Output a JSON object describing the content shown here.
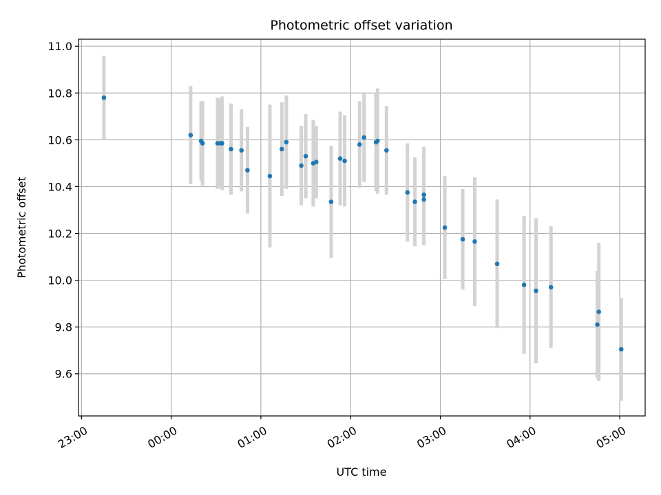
{
  "chart_data": {
    "type": "scatter",
    "title": "Photometric offset variation",
    "xlabel": "UTC time",
    "ylabel": "Photometric offset",
    "x_tick_labels": [
      "23:00",
      "00:00",
      "01:00",
      "02:00",
      "03:00",
      "04:00",
      "05:00"
    ],
    "y_tick_labels": [
      "9.6",
      "9.8",
      "10.0",
      "10.2",
      "10.4",
      "10.6",
      "10.8",
      "11.0"
    ],
    "xlim": [
      "22:58",
      "05:17"
    ],
    "ylim": [
      9.42,
      11.03
    ],
    "grid": true,
    "colors": {
      "point": "#1f77b4",
      "errorbar": "#d3d3d3",
      "grid": "#b0b0b0"
    },
    "points": [
      {
        "time": "23:15",
        "offset": 10.78,
        "err": 0.18
      },
      {
        "time": "00:13",
        "offset": 10.62,
        "err": 0.21
      },
      {
        "time": "00:20",
        "offset": 10.595,
        "err": 0.17
      },
      {
        "time": "00:21",
        "offset": 10.585,
        "err": 0.18
      },
      {
        "time": "00:31",
        "offset": 10.585,
        "err": 0.195
      },
      {
        "time": "00:33",
        "offset": 10.585,
        "err": 0.19
      },
      {
        "time": "00:34",
        "offset": 10.585,
        "err": 0.2
      },
      {
        "time": "00:40",
        "offset": 10.56,
        "err": 0.195
      },
      {
        "time": "00:47",
        "offset": 10.555,
        "err": 0.175
      },
      {
        "time": "00:51",
        "offset": 10.47,
        "err": 0.185
      },
      {
        "time": "01:06",
        "offset": 10.445,
        "err": 0.305
      },
      {
        "time": "01:14",
        "offset": 10.56,
        "err": 0.2
      },
      {
        "time": "01:17",
        "offset": 10.59,
        "err": 0.2
      },
      {
        "time": "01:27",
        "offset": 10.49,
        "err": 0.17
      },
      {
        "time": "01:30",
        "offset": 10.53,
        "err": 0.18
      },
      {
        "time": "01:35",
        "offset": 10.5,
        "err": 0.185
      },
      {
        "time": "01:37",
        "offset": 10.505,
        "err": 0.155
      },
      {
        "time": "01:47",
        "offset": 10.335,
        "err": 0.24
      },
      {
        "time": "01:53",
        "offset": 10.52,
        "err": 0.2
      },
      {
        "time": "01:56",
        "offset": 10.51,
        "err": 0.195
      },
      {
        "time": "02:06",
        "offset": 10.58,
        "err": 0.185
      },
      {
        "time": "02:09",
        "offset": 10.61,
        "err": 0.19
      },
      {
        "time": "02:17",
        "offset": 10.59,
        "err": 0.21
      },
      {
        "time": "02:18",
        "offset": 10.595,
        "err": 0.225
      },
      {
        "time": "02:24",
        "offset": 10.555,
        "err": 0.19
      },
      {
        "time": "02:38",
        "offset": 10.375,
        "err": 0.21
      },
      {
        "time": "02:43",
        "offset": 10.335,
        "err": 0.19
      },
      {
        "time": "02:49",
        "offset": 10.345,
        "err": 0.195
      },
      {
        "time": "02:49",
        "offset": 10.365,
        "err": 0.205
      },
      {
        "time": "03:03",
        "offset": 10.225,
        "err": 0.22
      },
      {
        "time": "03:15",
        "offset": 10.175,
        "err": 0.215
      },
      {
        "time": "03:23",
        "offset": 10.165,
        "err": 0.275
      },
      {
        "time": "03:38",
        "offset": 10.07,
        "err": 0.275
      },
      {
        "time": "03:56",
        "offset": 9.98,
        "err": 0.295
      },
      {
        "time": "04:04",
        "offset": 9.955,
        "err": 0.31
      },
      {
        "time": "04:14",
        "offset": 9.97,
        "err": 0.26
      },
      {
        "time": "04:45",
        "offset": 9.81,
        "err": 0.23
      },
      {
        "time": "04:46",
        "offset": 9.865,
        "err": 0.295
      },
      {
        "time": "05:01",
        "offset": 9.705,
        "err": 0.22
      }
    ]
  }
}
